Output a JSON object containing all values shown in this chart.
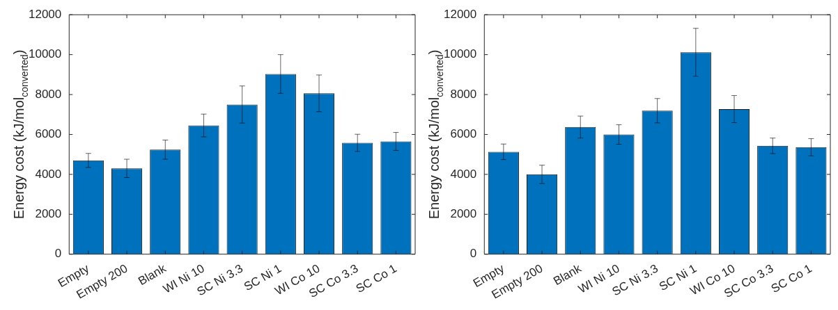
{
  "chart_data": [
    {
      "type": "bar",
      "ylabel": "Energy cost (kJ/mol$_{converted}$)",
      "categories": [
        "Empty",
        "Empty 200",
        "Blank",
        "WI Ni 10",
        "SC Ni 3.3",
        "SC Ni 1",
        "WI Co 10",
        "SC Co 3.3",
        "SC Co 1"
      ],
      "values": [
        4700,
        4300,
        5240,
        6450,
        7500,
        9030,
        8060,
        5580,
        5650
      ],
      "errors": [
        350,
        460,
        480,
        570,
        930,
        970,
        920,
        430,
        450
      ],
      "color": "#0072bd",
      "ylim": [
        0,
        12000
      ],
      "yticks": [
        0,
        2000,
        4000,
        6000,
        8000,
        10000,
        12000
      ]
    },
    {
      "type": "bar",
      "ylabel": "Energy cost (kJ/mol$_{converted}$)",
      "categories": [
        "Empty",
        "Empty 200",
        "Blank",
        "WI Ni 10",
        "SC Ni 3.3",
        "SC Ni 1",
        "WI Co 10",
        "SC Co 3.3",
        "SC Co 1"
      ],
      "values": [
        5130,
        4000,
        6370,
        6000,
        7190,
        10120,
        7270,
        5430,
        5360
      ],
      "errors": [
        390,
        460,
        550,
        490,
        610,
        1200,
        680,
        390,
        430
      ],
      "color": "#0072bd",
      "ylim": [
        0,
        12000
      ],
      "yticks": [
        0,
        2000,
        4000,
        6000,
        8000,
        10000,
        12000
      ]
    }
  ]
}
